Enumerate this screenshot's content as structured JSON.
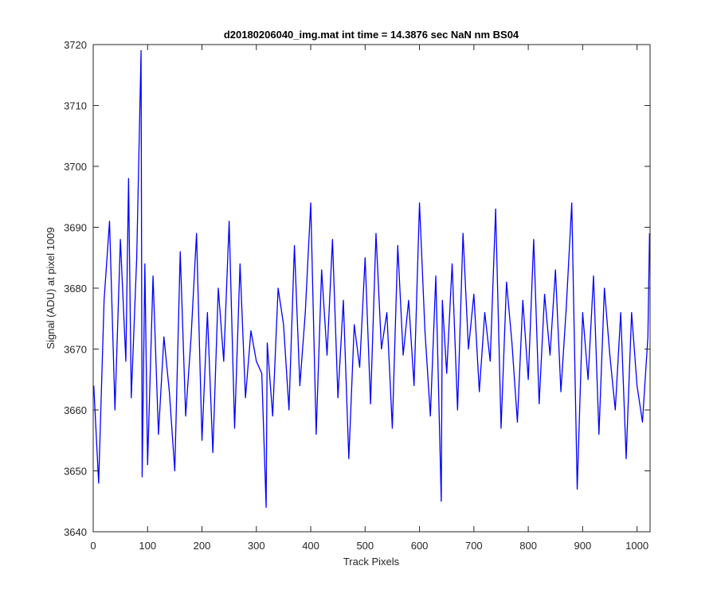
{
  "chart_data": {
    "type": "line",
    "title": "d20180206040_img.mat int time = 14.3876 sec  NaN nm BS04",
    "xlabel": "Track Pixels",
    "ylabel": "Signal (ADU) at pixel 1009",
    "xlim": [
      0,
      1024
    ],
    "ylim": [
      3640,
      3720
    ],
    "xticks": [
      0,
      100,
      200,
      300,
      400,
      500,
      600,
      700,
      800,
      900,
      1000
    ],
    "yticks": [
      3640,
      3650,
      3660,
      3670,
      3680,
      3690,
      3700,
      3710,
      3720
    ],
    "grid": false,
    "legend": "none",
    "series": [
      {
        "color": "#0000ff",
        "x": [
          1,
          10,
          20,
          30,
          40,
          50,
          60,
          65,
          70,
          80,
          88,
          90,
          95,
          100,
          110,
          120,
          130,
          140,
          150,
          160,
          170,
          180,
          190,
          200,
          210,
          220,
          230,
          240,
          250,
          260,
          270,
          280,
          290,
          300,
          310,
          318,
          320,
          330,
          340,
          350,
          360,
          370,
          380,
          390,
          400,
          410,
          420,
          430,
          440,
          450,
          460,
          470,
          480,
          490,
          500,
          510,
          520,
          530,
          540,
          550,
          560,
          570,
          580,
          590,
          600,
          610,
          620,
          630,
          640,
          642,
          650,
          660,
          670,
          680,
          690,
          700,
          710,
          720,
          730,
          740,
          750,
          760,
          770,
          780,
          790,
          800,
          810,
          820,
          830,
          840,
          850,
          860,
          870,
          880,
          890,
          900,
          910,
          920,
          930,
          940,
          950,
          960,
          970,
          980,
          990,
          1000,
          1010,
          1020,
          1023
        ],
        "y": [
          3664,
          3648,
          3678,
          3691,
          3660,
          3688,
          3668,
          3698,
          3662,
          3685,
          3719,
          3649,
          3684,
          3651,
          3682,
          3656,
          3672,
          3663,
          3650,
          3686,
          3659,
          3672,
          3689,
          3655,
          3676,
          3653,
          3680,
          3668,
          3691,
          3657,
          3684,
          3662,
          3673,
          3668,
          3666,
          3644,
          3671,
          3659,
          3680,
          3674,
          3660,
          3687,
          3664,
          3676,
          3694,
          3656,
          3683,
          3669,
          3688,
          3662,
          3678,
          3652,
          3674,
          3667,
          3685,
          3661,
          3689,
          3670,
          3676,
          3657,
          3687,
          3669,
          3678,
          3664,
          3694,
          3673,
          3659,
          3682,
          3645,
          3678,
          3666,
          3684,
          3660,
          3689,
          3670,
          3679,
          3663,
          3676,
          3668,
          3693,
          3657,
          3681,
          3671,
          3658,
          3678,
          3665,
          3688,
          3661,
          3679,
          3669,
          3683,
          3663,
          3677,
          3694,
          3647,
          3676,
          3665,
          3682,
          3656,
          3680,
          3669,
          3660,
          3676,
          3652,
          3676,
          3664,
          3658,
          3672,
          3689
        ]
      }
    ]
  }
}
